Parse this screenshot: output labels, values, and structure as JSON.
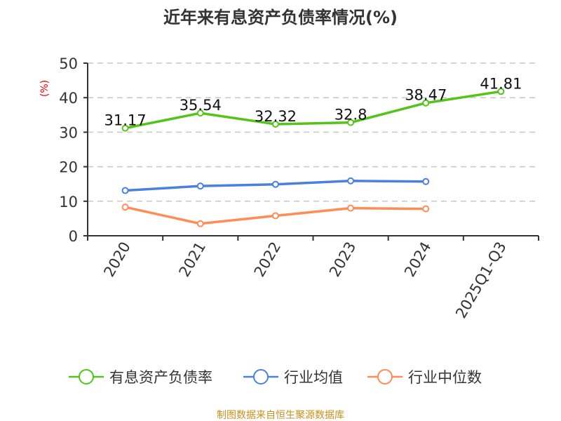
{
  "chart_data": {
    "type": "line",
    "title": "近年来有息资产负债率情况(%)",
    "ylabel": "(%)",
    "ylim": [
      0,
      50
    ],
    "yticks": [
      0,
      10,
      20,
      30,
      40,
      50
    ],
    "grid": true,
    "legend_position": "bottom",
    "categories": [
      "2020",
      "2021",
      "2022",
      "2023",
      "2024",
      "2025Q1-Q3"
    ],
    "series": [
      {
        "name": "有息资产负债率",
        "color": "#52c41a",
        "values": [
          31.17,
          35.54,
          32.32,
          32.8,
          38.47,
          41.81
        ],
        "labels": [
          "31.17",
          "35.54",
          "32.32",
          "32.8",
          "38.47",
          "41.81"
        ]
      },
      {
        "name": "行业均值",
        "color": "#4a80e0",
        "values": [
          13.1,
          14.4,
          14.9,
          15.9,
          15.7,
          null
        ]
      },
      {
        "name": "行业中位数",
        "color": "#ff8c55",
        "values": [
          8.3,
          3.5,
          5.8,
          8.0,
          7.8,
          null
        ]
      }
    ]
  },
  "source": "制图数据来自恒生聚源数据库"
}
